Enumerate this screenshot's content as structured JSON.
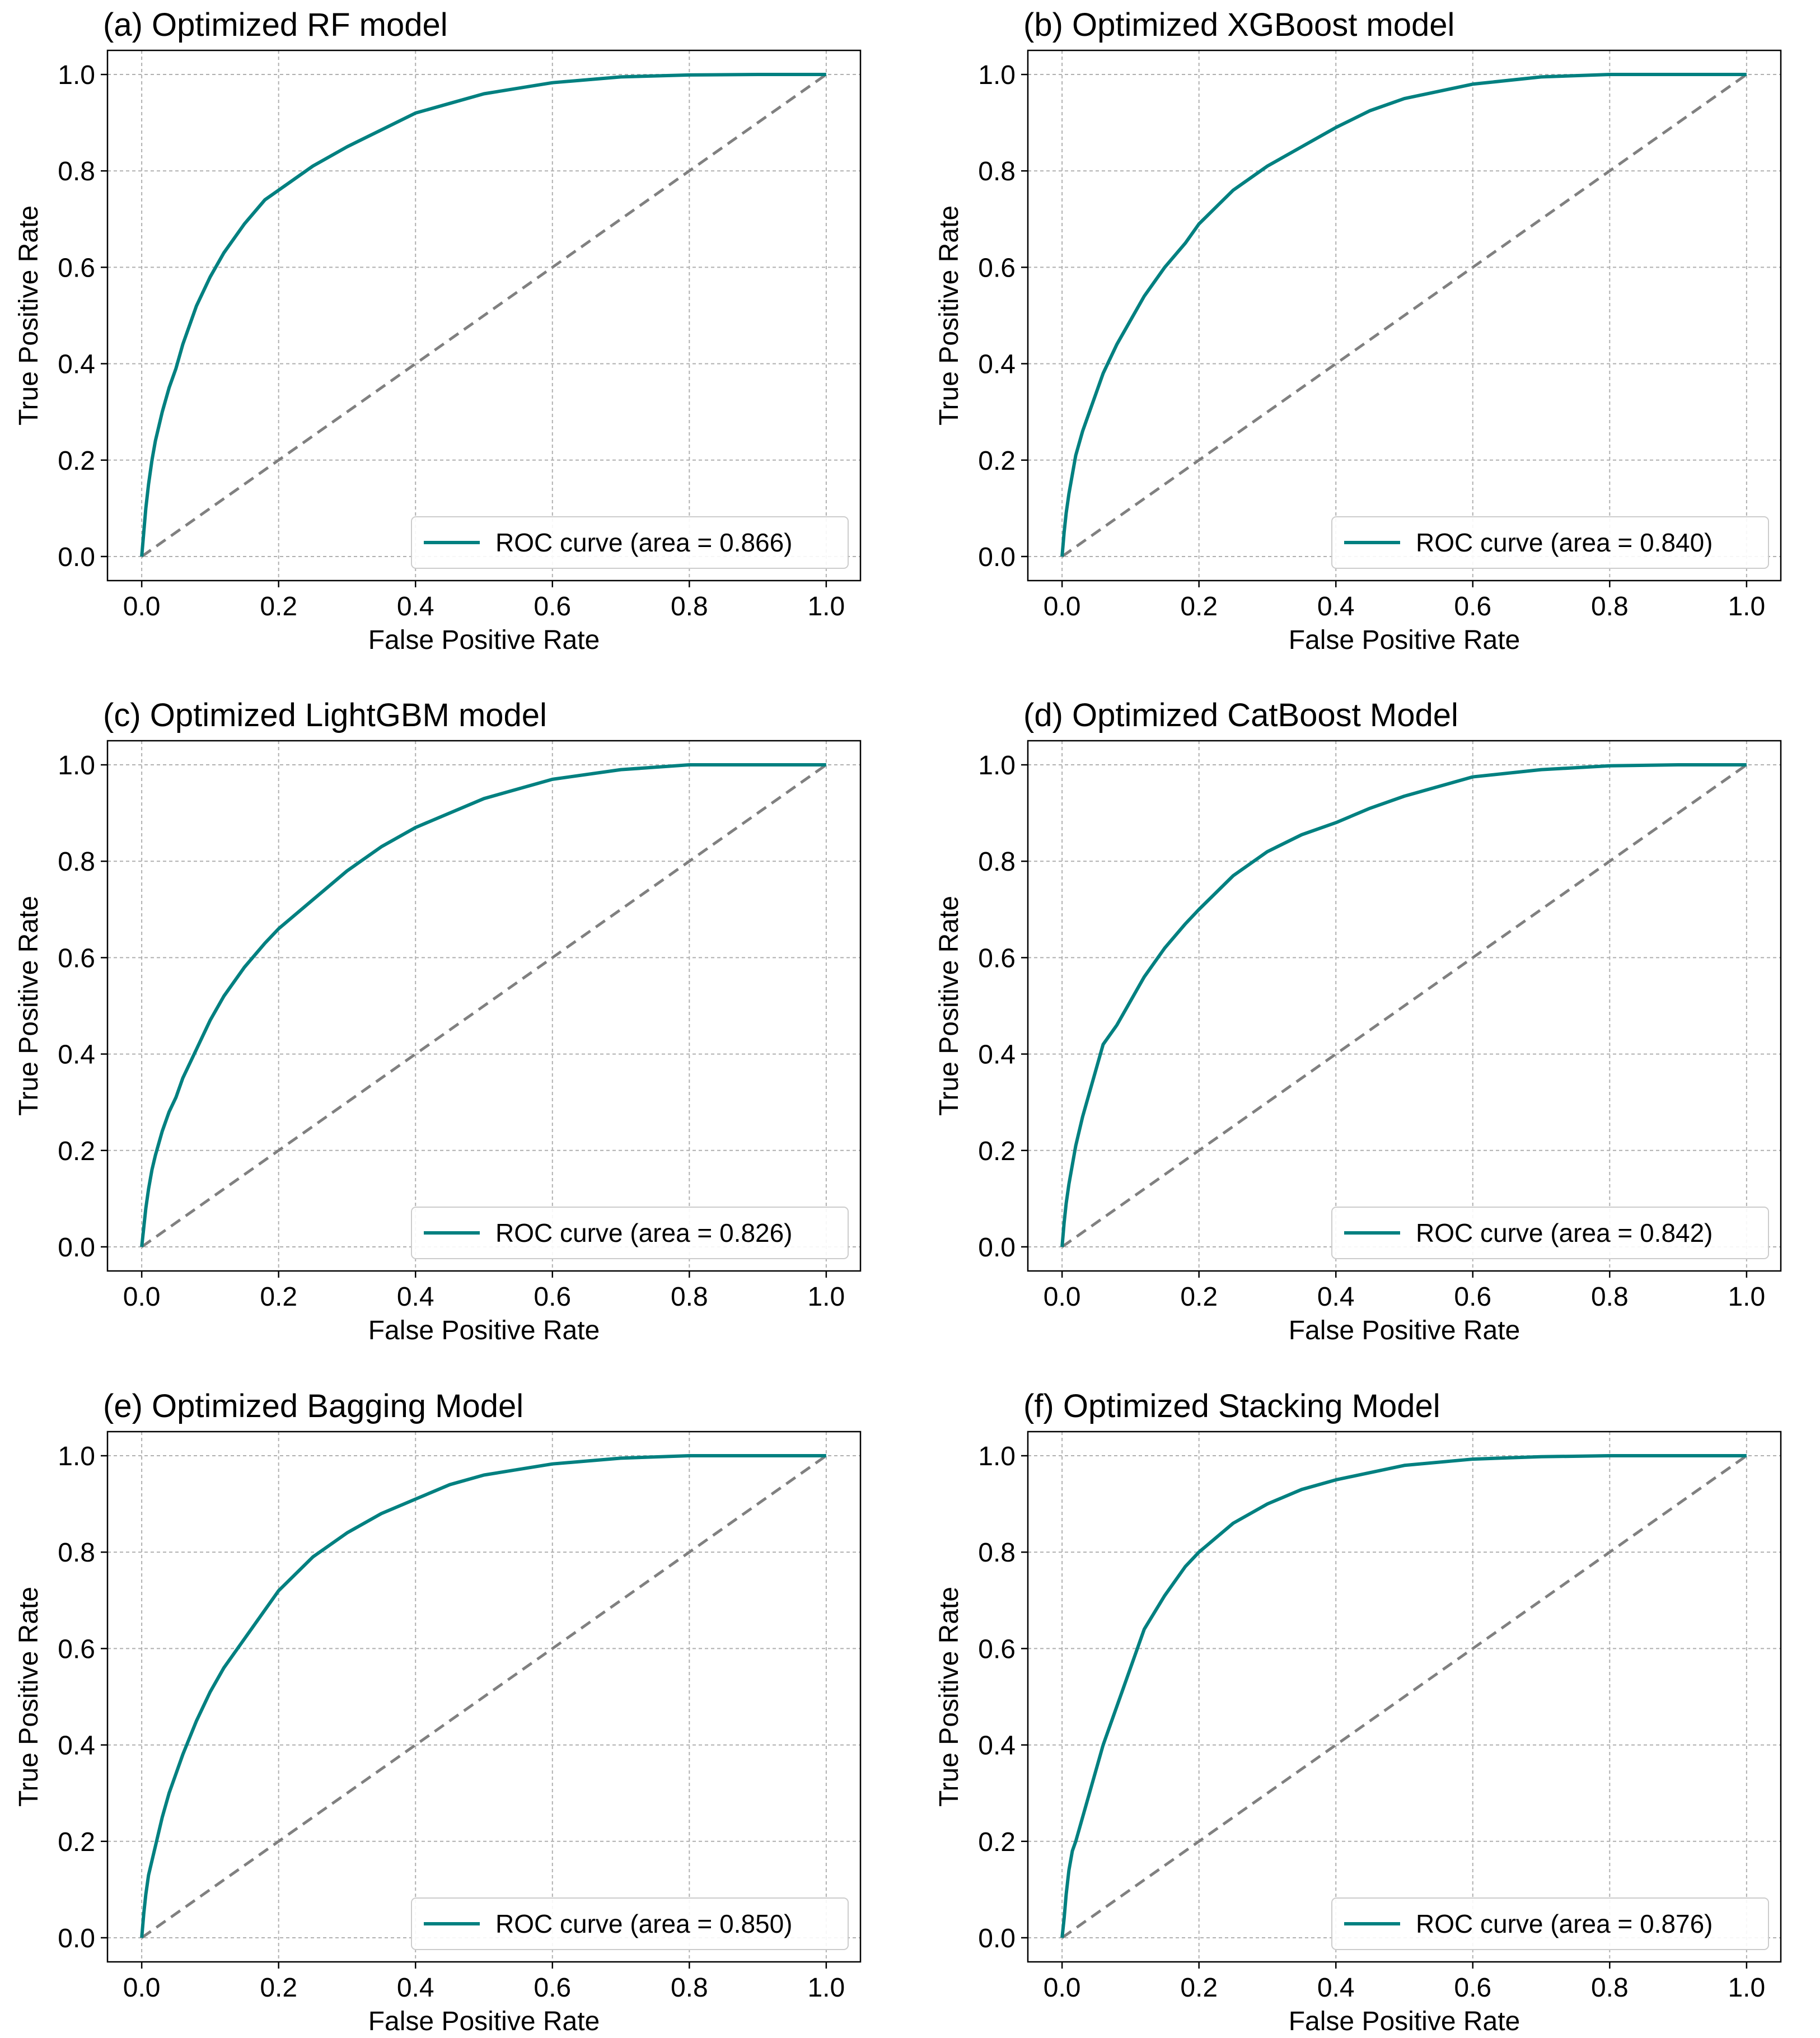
{
  "colors": {
    "roc": "#008080",
    "diagonal": "#808080",
    "grid": "#b0b0b0",
    "axes": "#000000"
  },
  "chart_data": [
    {
      "type": "line",
      "title": "(a) Optimized RF model",
      "xlabel": "False Positive Rate",
      "ylabel": "True Positive Rate",
      "xlim": [
        -0.05,
        1.05
      ],
      "ylim": [
        -0.05,
        1.05
      ],
      "xticks": [
        "0.0",
        "0.2",
        "0.4",
        "0.6",
        "0.8",
        "1.0"
      ],
      "yticks": [
        "0.0",
        "0.2",
        "0.4",
        "0.6",
        "0.8",
        "1.0"
      ],
      "grid": true,
      "legend": "lower-right",
      "series": [
        {
          "name": "ROC curve (area = 0.866)",
          "x": [
            0.0,
            0.003,
            0.006,
            0.01,
            0.015,
            0.02,
            0.03,
            0.04,
            0.05,
            0.06,
            0.08,
            0.1,
            0.12,
            0.15,
            0.18,
            0.2,
            0.25,
            0.3,
            0.35,
            0.4,
            0.45,
            0.5,
            0.6,
            0.7,
            0.8,
            0.9,
            1.0
          ],
          "y": [
            0.0,
            0.05,
            0.1,
            0.15,
            0.2,
            0.24,
            0.3,
            0.35,
            0.39,
            0.44,
            0.52,
            0.58,
            0.63,
            0.69,
            0.74,
            0.76,
            0.81,
            0.85,
            0.885,
            0.92,
            0.94,
            0.96,
            0.983,
            0.995,
            0.999,
            1.0,
            1.0
          ]
        },
        {
          "x": [
            0,
            1
          ],
          "y": [
            0,
            1
          ]
        }
      ]
    },
    {
      "type": "line",
      "title": "(b) Optimized XGBoost model",
      "xlabel": "False Positive Rate",
      "ylabel": "True Positive Rate",
      "xlim": [
        -0.05,
        1.05
      ],
      "ylim": [
        -0.05,
        1.05
      ],
      "xticks": [
        "0.0",
        "0.2",
        "0.4",
        "0.6",
        "0.8",
        "1.0"
      ],
      "yticks": [
        "0.0",
        "0.2",
        "0.4",
        "0.6",
        "0.8",
        "1.0"
      ],
      "grid": true,
      "legend": "lower-right",
      "series": [
        {
          "name": "ROC curve (area = 0.840)",
          "x": [
            0.0,
            0.003,
            0.006,
            0.01,
            0.015,
            0.02,
            0.03,
            0.04,
            0.05,
            0.06,
            0.08,
            0.1,
            0.12,
            0.15,
            0.18,
            0.2,
            0.25,
            0.3,
            0.35,
            0.4,
            0.45,
            0.5,
            0.6,
            0.7,
            0.8,
            0.9,
            1.0
          ],
          "y": [
            0.0,
            0.05,
            0.09,
            0.13,
            0.17,
            0.21,
            0.26,
            0.3,
            0.34,
            0.38,
            0.44,
            0.49,
            0.54,
            0.6,
            0.65,
            0.69,
            0.76,
            0.81,
            0.85,
            0.89,
            0.925,
            0.95,
            0.98,
            0.995,
            1.0,
            1.0,
            1.0
          ]
        },
        {
          "x": [
            0,
            1
          ],
          "y": [
            0,
            1
          ]
        }
      ]
    },
    {
      "type": "line",
      "title": "(c) Optimized LightGBM model",
      "xlabel": "False Positive Rate",
      "ylabel": "True Positive Rate",
      "xlim": [
        -0.05,
        1.05
      ],
      "ylim": [
        -0.05,
        1.05
      ],
      "xticks": [
        "0.0",
        "0.2",
        "0.4",
        "0.6",
        "0.8",
        "1.0"
      ],
      "yticks": [
        "0.0",
        "0.2",
        "0.4",
        "0.6",
        "0.8",
        "1.0"
      ],
      "grid": true,
      "legend": "lower-right",
      "series": [
        {
          "name": "ROC curve (area = 0.826)",
          "x": [
            0.0,
            0.003,
            0.006,
            0.01,
            0.015,
            0.02,
            0.03,
            0.04,
            0.05,
            0.06,
            0.08,
            0.1,
            0.12,
            0.15,
            0.18,
            0.2,
            0.25,
            0.3,
            0.35,
            0.4,
            0.45,
            0.5,
            0.6,
            0.7,
            0.8,
            0.9,
            1.0
          ],
          "y": [
            0.0,
            0.04,
            0.08,
            0.12,
            0.16,
            0.19,
            0.24,
            0.28,
            0.31,
            0.35,
            0.41,
            0.47,
            0.52,
            0.58,
            0.63,
            0.66,
            0.72,
            0.78,
            0.83,
            0.87,
            0.9,
            0.93,
            0.97,
            0.99,
            1.0,
            1.0,
            1.0
          ]
        },
        {
          "x": [
            0,
            1
          ],
          "y": [
            0,
            1
          ]
        }
      ]
    },
    {
      "type": "line",
      "title": "(d) Optimized CatBoost Model",
      "xlabel": "False Positive Rate",
      "ylabel": "True Positive Rate",
      "xlim": [
        -0.05,
        1.05
      ],
      "ylim": [
        -0.05,
        1.05
      ],
      "xticks": [
        "0.0",
        "0.2",
        "0.4",
        "0.6",
        "0.8",
        "1.0"
      ],
      "yticks": [
        "0.0",
        "0.2",
        "0.4",
        "0.6",
        "0.8",
        "1.0"
      ],
      "grid": true,
      "legend": "lower-right",
      "series": [
        {
          "name": "ROC curve (area = 0.842)",
          "x": [
            0.0,
            0.003,
            0.006,
            0.01,
            0.015,
            0.02,
            0.03,
            0.04,
            0.05,
            0.06,
            0.08,
            0.1,
            0.12,
            0.15,
            0.18,
            0.2,
            0.25,
            0.3,
            0.35,
            0.4,
            0.45,
            0.5,
            0.6,
            0.7,
            0.8,
            0.9,
            1.0
          ],
          "y": [
            0.0,
            0.05,
            0.09,
            0.13,
            0.17,
            0.21,
            0.27,
            0.32,
            0.37,
            0.42,
            0.46,
            0.51,
            0.56,
            0.62,
            0.67,
            0.7,
            0.77,
            0.82,
            0.855,
            0.88,
            0.91,
            0.935,
            0.975,
            0.99,
            0.998,
            1.0,
            1.0
          ]
        },
        {
          "x": [
            0,
            1
          ],
          "y": [
            0,
            1
          ]
        }
      ]
    },
    {
      "type": "line",
      "title": "(e) Optimized Bagging Model",
      "xlabel": "False Positive Rate",
      "ylabel": "True Positive Rate",
      "xlim": [
        -0.05,
        1.05
      ],
      "ylim": [
        -0.05,
        1.05
      ],
      "xticks": [
        "0.0",
        "0.2",
        "0.4",
        "0.6",
        "0.8",
        "1.0"
      ],
      "yticks": [
        "0.0",
        "0.2",
        "0.4",
        "0.6",
        "0.8",
        "1.0"
      ],
      "grid": true,
      "legend": "lower-right",
      "series": [
        {
          "name": "ROC curve (area = 0.850)",
          "x": [
            0.0,
            0.003,
            0.006,
            0.01,
            0.015,
            0.02,
            0.03,
            0.04,
            0.05,
            0.06,
            0.08,
            0.1,
            0.12,
            0.15,
            0.18,
            0.2,
            0.25,
            0.3,
            0.35,
            0.4,
            0.45,
            0.5,
            0.6,
            0.7,
            0.8,
            0.9,
            1.0
          ],
          "y": [
            0.0,
            0.05,
            0.09,
            0.13,
            0.16,
            0.19,
            0.25,
            0.3,
            0.34,
            0.38,
            0.45,
            0.51,
            0.56,
            0.62,
            0.68,
            0.72,
            0.79,
            0.84,
            0.88,
            0.91,
            0.94,
            0.96,
            0.983,
            0.995,
            1.0,
            1.0,
            1.0
          ]
        },
        {
          "x": [
            0,
            1
          ],
          "y": [
            0,
            1
          ]
        }
      ]
    },
    {
      "type": "line",
      "title": "(f) Optimized Stacking Model",
      "xlabel": "False Positive Rate",
      "ylabel": "True Positive Rate",
      "xlim": [
        -0.05,
        1.05
      ],
      "ylim": [
        -0.05,
        1.05
      ],
      "xticks": [
        "0.0",
        "0.2",
        "0.4",
        "0.6",
        "0.8",
        "1.0"
      ],
      "yticks": [
        "0.0",
        "0.2",
        "0.4",
        "0.6",
        "0.8",
        "1.0"
      ],
      "grid": true,
      "legend": "lower-right",
      "series": [
        {
          "name": "ROC curve (area = 0.876)",
          "x": [
            0.0,
            0.003,
            0.006,
            0.01,
            0.015,
            0.02,
            0.03,
            0.04,
            0.05,
            0.06,
            0.08,
            0.1,
            0.12,
            0.15,
            0.18,
            0.2,
            0.25,
            0.3,
            0.35,
            0.4,
            0.45,
            0.5,
            0.6,
            0.7,
            0.8,
            0.9,
            1.0
          ],
          "y": [
            0.0,
            0.04,
            0.09,
            0.14,
            0.18,
            0.2,
            0.25,
            0.3,
            0.35,
            0.4,
            0.48,
            0.56,
            0.64,
            0.71,
            0.77,
            0.8,
            0.86,
            0.9,
            0.93,
            0.95,
            0.965,
            0.98,
            0.993,
            0.998,
            1.0,
            1.0,
            1.0
          ]
        },
        {
          "x": [
            0,
            1
          ],
          "y": [
            0,
            1
          ]
        }
      ]
    }
  ]
}
